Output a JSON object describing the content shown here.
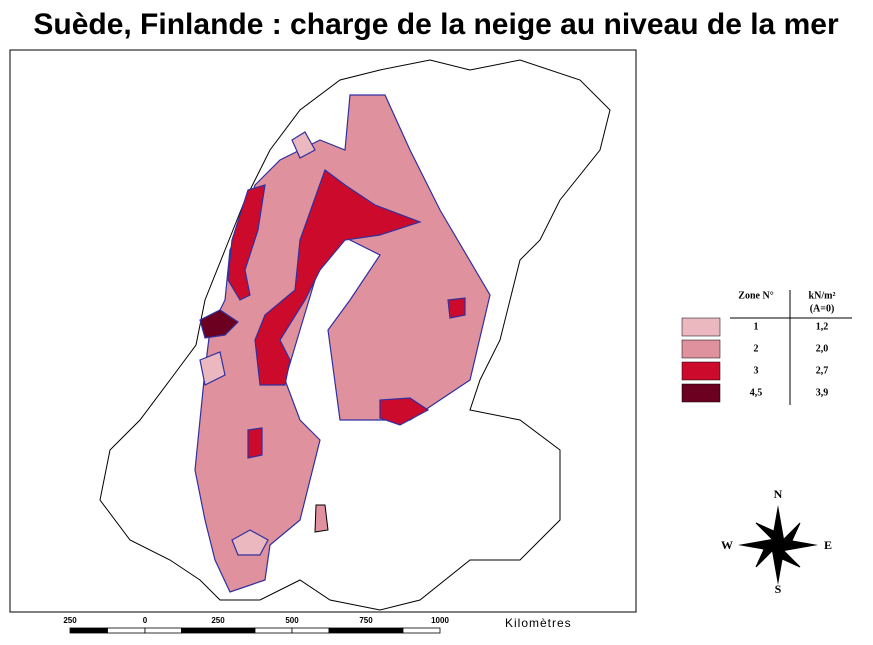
{
  "header": {
    "title": "Suède, Finlande : charge de la neige au niveau de la mer"
  },
  "legend": {
    "headers": [
      "Zone N°",
      "kN/m²",
      "(A=0)"
    ],
    "rows": [
      {
        "zone": "1",
        "load": "1,2",
        "color": "#ebb8c0"
      },
      {
        "zone": "2",
        "load": "2,0",
        "color": "#e0919e"
      },
      {
        "zone": "3",
        "load": "2,7",
        "color": "#cc0a2c"
      },
      {
        "zone": "4,5",
        "load": "3,9",
        "color": "#6b0020"
      }
    ]
  },
  "compass": {
    "north": "N",
    "east": "E",
    "south": "S",
    "west": "W"
  },
  "scale": {
    "labels": [
      "250",
      "0",
      "250",
      "500",
      "750",
      "1000"
    ],
    "unit": "Kilomètres"
  }
}
